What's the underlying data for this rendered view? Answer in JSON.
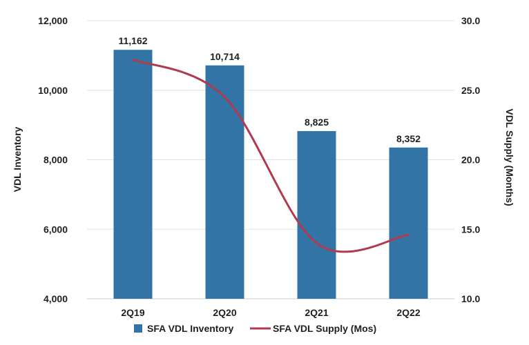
{
  "chart_data": {
    "type": "bar",
    "categories": [
      "2Q19",
      "2Q20",
      "2Q21",
      "2Q22"
    ],
    "series": [
      {
        "name": "SFA VDL Inventory",
        "kind": "bar",
        "axis": "left",
        "values": [
          11162,
          10714,
          8825,
          8352
        ],
        "labels": [
          "11,162",
          "10,714",
          "8,825",
          "8,352"
        ],
        "color": "#3274a6"
      },
      {
        "name": "SFA VDL Supply (Mos)",
        "kind": "line",
        "axis": "right",
        "values": [
          27.2,
          24.5,
          14.0,
          14.6
        ],
        "color": "#b03a4e"
      }
    ],
    "y_left": {
      "label": "VDL Inventory",
      "lim": [
        4000,
        12000
      ],
      "ticks": [
        4000,
        6000,
        8000,
        10000,
        12000
      ],
      "tick_labels": [
        "4,000",
        "6,000",
        "8,000",
        "10,000",
        "12,000"
      ]
    },
    "y_right": {
      "label": "VDL Supply (Months)",
      "lim": [
        10.0,
        30.0
      ],
      "ticks": [
        10.0,
        15.0,
        20.0,
        25.0,
        30.0
      ],
      "tick_labels": [
        "10.0",
        "15.0",
        "20.0",
        "25.0",
        "30.0"
      ]
    },
    "grid": true,
    "legend_position": "bottom-center"
  }
}
